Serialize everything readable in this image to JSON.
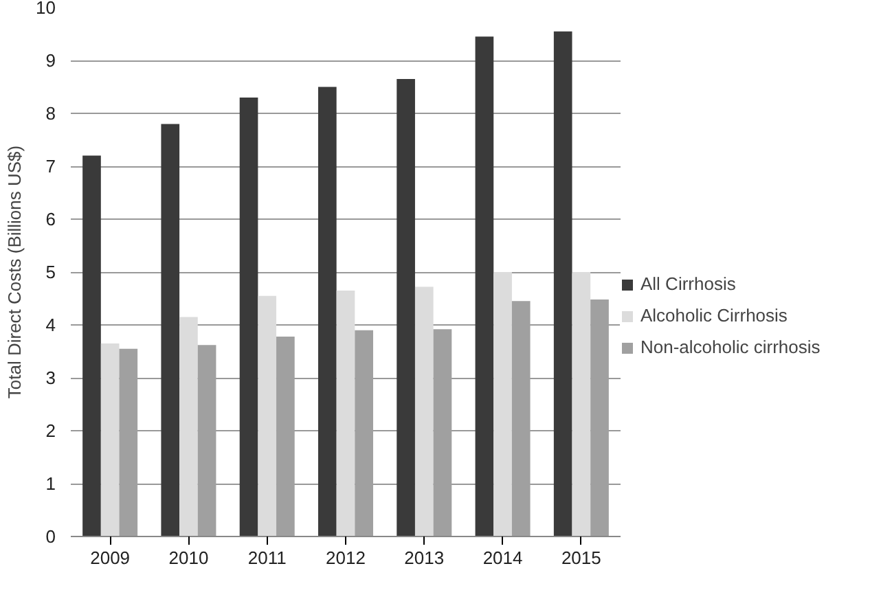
{
  "chart_data": {
    "type": "bar",
    "ylabel": "Total Direct Costs (Billions US$)",
    "categories": [
      "2009",
      "2010",
      "2011",
      "2012",
      "2013",
      "2014",
      "2015"
    ],
    "series": [
      {
        "name": "All Cirrhosis",
        "color": "#3a3a3a",
        "values": [
          7.2,
          7.8,
          8.3,
          8.5,
          8.65,
          9.45,
          9.55
        ]
      },
      {
        "name": "Alcoholic Cirrhosis",
        "color": "#dcdcdc",
        "values": [
          3.65,
          4.15,
          4.55,
          4.65,
          4.72,
          5.0,
          5.0
        ]
      },
      {
        "name": "Non-alcoholic cirrhosis",
        "color": "#a0a0a0",
        "values": [
          3.55,
          3.62,
          3.78,
          3.9,
          3.92,
          4.45,
          4.48
        ]
      }
    ],
    "ylim": [
      0,
      10
    ],
    "yticks": [
      0,
      1,
      2,
      3,
      4,
      5,
      6,
      7,
      8,
      9,
      10
    ],
    "grid": "y",
    "legend": "right"
  }
}
